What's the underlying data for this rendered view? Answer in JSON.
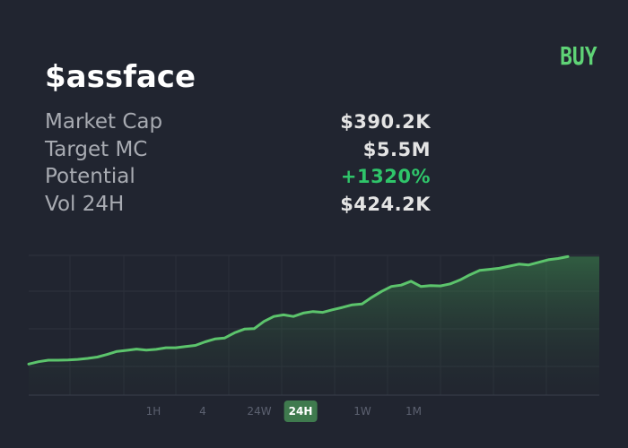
{
  "token": {
    "name": "$assface"
  },
  "buy_label": "BUY",
  "stats": [
    {
      "label": "Market Cap",
      "value": "$390.2K",
      "positive": false
    },
    {
      "label": "Target MC",
      "value": "$5.5M",
      "positive": false
    },
    {
      "label": "Potential",
      "value": "+1320%",
      "positive": true
    },
    {
      "label": "Vol 24H",
      "value": "$424.2K",
      "positive": false
    }
  ],
  "timeframes": [
    {
      "label": "1H",
      "active": false
    },
    {
      "label": "4",
      "active": false
    },
    {
      "label": "24W",
      "active": false
    },
    {
      "label": "24H",
      "active": true
    },
    {
      "label": "1W",
      "active": false
    },
    {
      "label": "1M",
      "active": false
    }
  ],
  "colors": {
    "background": "#212530",
    "accent_green": "#5fd376",
    "positive": "#2fc56a",
    "line": "#5cc46c",
    "active_tab": "#3f7a4e"
  },
  "chart_data": {
    "type": "area",
    "title": "",
    "xlabel": "",
    "ylabel": "",
    "grid": true,
    "values": [
      12.0,
      12.9,
      13.5,
      13.5,
      13.6,
      13.8,
      14.2,
      14.7,
      15.7,
      16.9,
      17.3,
      17.8,
      17.4,
      17.7,
      18.3,
      18.3,
      18.8,
      19.2,
      20.6,
      21.7,
      22.1,
      24.1,
      25.5,
      25.7,
      28.5,
      30.4,
      31.0,
      30.4,
      31.7,
      32.3,
      32.0,
      33.0,
      33.9,
      34.9,
      35.2,
      37.8,
      40.1,
      42.0,
      42.5,
      44.0,
      42.0,
      42.3,
      42.2,
      43.0,
      44.5,
      46.5,
      48.2,
      48.6,
      49.0,
      49.8,
      50.6,
      50.3,
      51.3,
      52.3,
      52.8,
      53.5
    ]
  }
}
